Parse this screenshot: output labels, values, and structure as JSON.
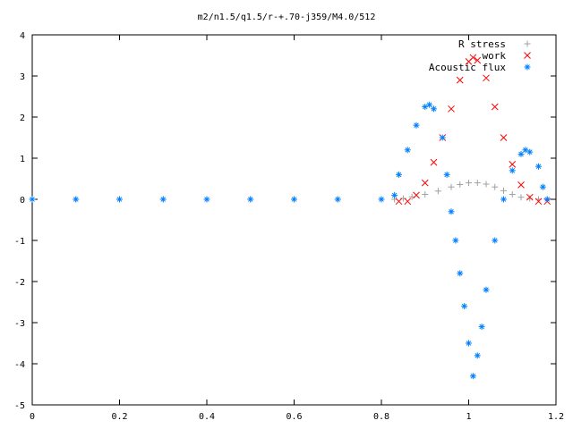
{
  "chart_data": {
    "type": "scatter",
    "title": "m2/n1.5/q1.5/r-+.70-j359/M4.0/512",
    "xlabel": "",
    "ylabel": "",
    "xlim": [
      0,
      1.2
    ],
    "ylim": [
      -5,
      4
    ],
    "x_ticks": [
      "0",
      "0.2",
      "0.4",
      "0.6",
      "0.8",
      "1",
      "1.2"
    ],
    "y_ticks": [
      "4",
      "3",
      "2",
      "1",
      "0",
      "-1",
      "-2",
      "-3",
      "-4",
      "-5"
    ],
    "grid": false,
    "legend_position": "top-right",
    "series": [
      {
        "name": "R stress",
        "marker": "+",
        "color": "#a0a0a0",
        "points": [
          [
            0.0,
            0
          ],
          [
            0.1,
            0
          ],
          [
            0.2,
            0
          ],
          [
            0.3,
            0
          ],
          [
            0.4,
            0
          ],
          [
            0.5,
            0
          ],
          [
            0.6,
            0
          ],
          [
            0.7,
            0
          ],
          [
            0.8,
            0
          ],
          [
            0.83,
            0.0
          ],
          [
            0.85,
            0.02
          ],
          [
            0.87,
            0.06
          ],
          [
            0.9,
            0.12
          ],
          [
            0.93,
            0.2
          ],
          [
            0.96,
            0.3
          ],
          [
            0.98,
            0.36
          ],
          [
            1.0,
            0.4
          ],
          [
            1.02,
            0.4
          ],
          [
            1.04,
            0.37
          ],
          [
            1.06,
            0.3
          ],
          [
            1.08,
            0.21
          ],
          [
            1.1,
            0.12
          ],
          [
            1.12,
            0.05
          ],
          [
            1.14,
            0.02
          ],
          [
            1.16,
            0.0
          ],
          [
            1.18,
            0.0
          ]
        ]
      },
      {
        "name": "work",
        "marker": "x",
        "color": "#ff0000",
        "points": [
          [
            0.84,
            -0.05
          ],
          [
            0.86,
            -0.05
          ],
          [
            0.88,
            0.1
          ],
          [
            0.9,
            0.4
          ],
          [
            0.92,
            0.9
          ],
          [
            0.94,
            1.5
          ],
          [
            0.96,
            2.2
          ],
          [
            0.98,
            2.9
          ],
          [
            1.0,
            3.35
          ],
          [
            1.01,
            3.45
          ],
          [
            1.02,
            3.38
          ],
          [
            1.04,
            2.95
          ],
          [
            1.06,
            2.25
          ],
          [
            1.08,
            1.5
          ],
          [
            1.1,
            0.85
          ],
          [
            1.12,
            0.35
          ],
          [
            1.14,
            0.05
          ],
          [
            1.16,
            -0.05
          ],
          [
            1.18,
            -0.05
          ]
        ]
      },
      {
        "name": "Acoustic flux",
        "marker": "*",
        "color": "#0080ff",
        "points": [
          [
            0.0,
            0
          ],
          [
            0.1,
            0
          ],
          [
            0.2,
            0
          ],
          [
            0.3,
            0
          ],
          [
            0.4,
            0
          ],
          [
            0.5,
            0
          ],
          [
            0.6,
            0
          ],
          [
            0.7,
            0
          ],
          [
            0.8,
            0
          ],
          [
            0.83,
            0.1
          ],
          [
            0.84,
            0.6
          ],
          [
            0.86,
            1.2
          ],
          [
            0.88,
            1.8
          ],
          [
            0.9,
            2.25
          ],
          [
            0.91,
            2.3
          ],
          [
            0.92,
            2.2
          ],
          [
            0.94,
            1.5
          ],
          [
            0.95,
            0.6
          ],
          [
            0.96,
            -0.3
          ],
          [
            0.97,
            -1.0
          ],
          [
            0.98,
            -1.8
          ],
          [
            0.99,
            -2.6
          ],
          [
            1.0,
            -3.5
          ],
          [
            1.01,
            -4.3
          ],
          [
            1.02,
            -3.8
          ],
          [
            1.03,
            -3.1
          ],
          [
            1.04,
            -2.2
          ],
          [
            1.06,
            -1.0
          ],
          [
            1.08,
            0.0
          ],
          [
            1.1,
            0.7
          ],
          [
            1.12,
            1.1
          ],
          [
            1.13,
            1.2
          ],
          [
            1.14,
            1.15
          ],
          [
            1.16,
            0.8
          ],
          [
            1.17,
            0.3
          ],
          [
            1.18,
            0.0
          ]
        ]
      }
    ]
  }
}
